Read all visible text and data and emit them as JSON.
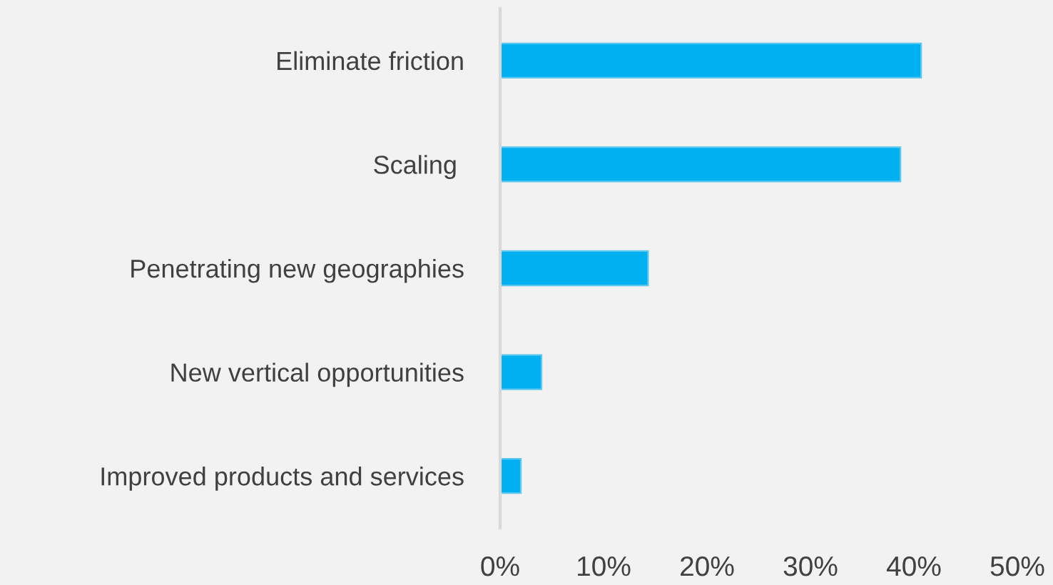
{
  "chart_data": {
    "type": "bar",
    "orientation": "horizontal",
    "categories": [
      "Eliminate friction",
      "Scaling ",
      "Penetrating new geographies",
      "New vertical opportunities",
      "Improved products and services"
    ],
    "values": [
      40.7,
      38.7,
      14.3,
      4.0,
      2.0
    ],
    "color": "#00b0f0",
    "xlim": [
      0,
      50
    ],
    "xticks": [
      {
        "value": 0,
        "label": "0%"
      },
      {
        "value": 10,
        "label": "10%"
      },
      {
        "value": 20,
        "label": "20%"
      },
      {
        "value": 30,
        "label": "30%"
      },
      {
        "value": 40,
        "label": "40%"
      },
      {
        "value": 50,
        "label": "50%"
      }
    ],
    "grid": false,
    "legend": false
  }
}
